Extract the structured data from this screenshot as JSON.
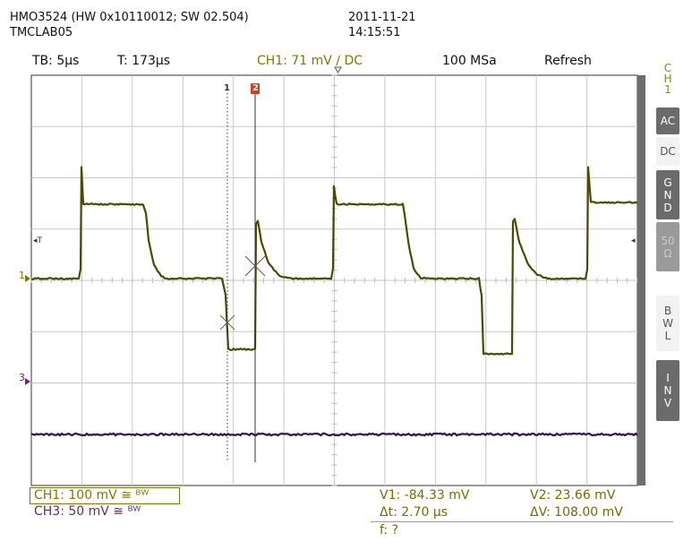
{
  "header": {
    "device": "HMO3524 (HW 0x10110012; SW 02.504)",
    "station": "TMCLAB05",
    "date": "2011-11-21",
    "time": "14:15:51"
  },
  "topbar": {
    "timebase": "TB: 5µs",
    "trigger_time": "T: 173µs",
    "trigger": "CH1: 71 mV ∕ DC",
    "sample_rate": "100 MSa",
    "mode": "Refresh"
  },
  "side_menu": {
    "channel": [
      "C",
      "H",
      "1"
    ],
    "buttons": [
      {
        "label": [
          "AC"
        ],
        "state": "normal"
      },
      {
        "label": [
          "DC"
        ],
        "state": "selected"
      },
      {
        "label": [
          "G",
          "N",
          "D"
        ],
        "state": "normal"
      },
      {
        "label": [
          "50",
          "Ω"
        ],
        "state": "disabled"
      },
      {
        "label": [
          "B",
          "W",
          "L"
        ],
        "state": "selected"
      },
      {
        "label": [
          "I",
          "N",
          "V"
        ],
        "state": "normal"
      }
    ]
  },
  "markers": {
    "ch1_ground": "1",
    "ch3_ground": "3",
    "cursor1": "1",
    "cursor2": "2",
    "trigger_left": "◂T",
    "trigger_right": "◂"
  },
  "bottom": {
    "ch1": "CH1: 100 mV ≅ ᴮᵂ",
    "ch3": "CH3: 50 mV ≅ ᴮᵂ",
    "v1": "V1: -84.33 mV",
    "v2": "V2: 23.66 mV",
    "dt": "Δt: 2.70 µs",
    "dv": "ΔV: 108.00 mV",
    "freq": "f: ?"
  },
  "colors": {
    "ch1": "#5c5c00",
    "ch3": "#4a1a5a",
    "grid": "#c8c8c8",
    "cursor2": "#d23a1a"
  }
}
